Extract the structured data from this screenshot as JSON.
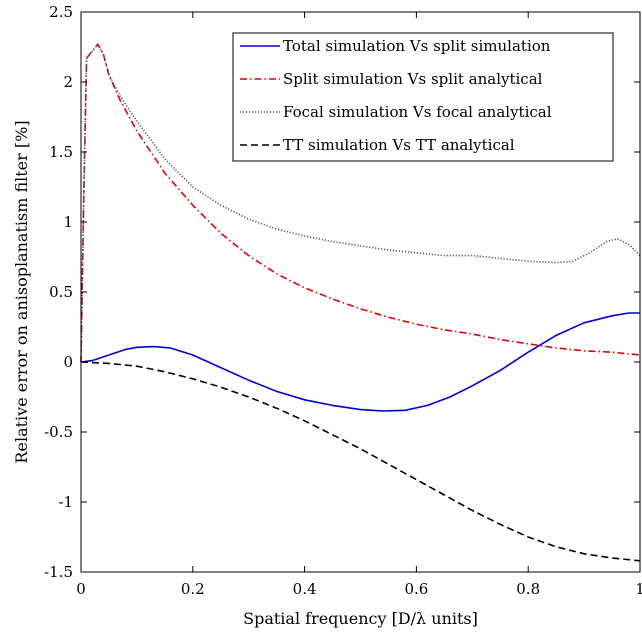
{
  "chart_data": {
    "type": "line",
    "title": "",
    "xlabel": "Spatial frequency [D/λ units]",
    "ylabel": "Relative error on anisoplanatism filter [%]",
    "xlim": [
      0,
      1
    ],
    "ylim": [
      -1.5,
      2.5
    ],
    "xticks": [
      0,
      0.2,
      0.4,
      0.6,
      0.8,
      1
    ],
    "xtick_labels": [
      "0",
      "0.2",
      "0.4",
      "0.6",
      "0.8",
      "1"
    ],
    "yticks": [
      -1.5,
      -1,
      -0.5,
      0,
      0.5,
      1,
      1.5,
      2,
      2.5
    ],
    "ytick_labels": [
      "-1.5",
      "-1",
      "-0.5",
      "0",
      "0.5",
      "1",
      "1.5",
      "2",
      "2.5"
    ],
    "grid": false,
    "legend_position": "top-right",
    "series": [
      {
        "name": "Total simulation Vs split simulation",
        "color": "#0000cc",
        "dash": "solid",
        "x": [
          0,
          0.02,
          0.05,
          0.08,
          0.1,
          0.13,
          0.16,
          0.2,
          0.25,
          0.3,
          0.35,
          0.4,
          0.45,
          0.5,
          0.54,
          0.58,
          0.62,
          0.66,
          0.7,
          0.75,
          0.8,
          0.85,
          0.9,
          0.95,
          0.98,
          1
        ],
        "y": [
          0,
          0.01,
          0.05,
          0.09,
          0.105,
          0.11,
          0.1,
          0.05,
          -0.04,
          -0.13,
          -0.21,
          -0.27,
          -0.31,
          -0.34,
          -0.35,
          -0.345,
          -0.31,
          -0.25,
          -0.17,
          -0.06,
          0.07,
          0.19,
          0.28,
          0.33,
          0.35,
          0.35
        ]
      },
      {
        "name": "Split simulation Vs split analytical",
        "color": "#e00000",
        "dash": "dashdot",
        "x": [
          0,
          0.005,
          0.01,
          0.02,
          0.03,
          0.04,
          0.05,
          0.07,
          0.1,
          0.15,
          0.2,
          0.25,
          0.3,
          0.35,
          0.4,
          0.45,
          0.5,
          0.55,
          0.6,
          0.65,
          0.7,
          0.75,
          0.8,
          0.85,
          0.9,
          0.95,
          1
        ],
        "y": [
          0,
          1.2,
          2.17,
          2.22,
          2.27,
          2.2,
          2.05,
          1.87,
          1.65,
          1.35,
          1.12,
          0.92,
          0.76,
          0.63,
          0.53,
          0.45,
          0.38,
          0.32,
          0.27,
          0.23,
          0.2,
          0.16,
          0.13,
          0.1,
          0.08,
          0.07,
          0.05
        ]
      },
      {
        "name": "Focal simulation Vs focal analytical",
        "color": "#44558a",
        "dash": "dotted",
        "x": [
          0,
          0.005,
          0.01,
          0.02,
          0.03,
          0.04,
          0.05,
          0.07,
          0.1,
          0.15,
          0.2,
          0.25,
          0.3,
          0.35,
          0.4,
          0.45,
          0.5,
          0.55,
          0.6,
          0.65,
          0.7,
          0.75,
          0.8,
          0.85,
          0.88,
          0.91,
          0.94,
          0.96,
          0.98,
          1
        ],
        "y": [
          0,
          1.2,
          2.17,
          2.22,
          2.27,
          2.2,
          2.05,
          1.9,
          1.72,
          1.45,
          1.25,
          1.12,
          1.02,
          0.95,
          0.9,
          0.86,
          0.83,
          0.8,
          0.78,
          0.76,
          0.76,
          0.74,
          0.72,
          0.71,
          0.72,
          0.78,
          0.86,
          0.88,
          0.84,
          0.76
        ]
      },
      {
        "name": "TT simulation Vs TT analytical",
        "color": "#000000",
        "dash": "dashed",
        "x": [
          0,
          0.05,
          0.1,
          0.15,
          0.2,
          0.25,
          0.3,
          0.35,
          0.4,
          0.45,
          0.5,
          0.55,
          0.6,
          0.65,
          0.7,
          0.75,
          0.8,
          0.85,
          0.9,
          0.95,
          1
        ],
        "y": [
          0,
          -0.01,
          -0.03,
          -0.07,
          -0.12,
          -0.18,
          -0.25,
          -0.33,
          -0.42,
          -0.52,
          -0.62,
          -0.73,
          -0.84,
          -0.95,
          -1.06,
          -1.16,
          -1.25,
          -1.32,
          -1.37,
          -1.4,
          -1.42
        ]
      }
    ]
  }
}
